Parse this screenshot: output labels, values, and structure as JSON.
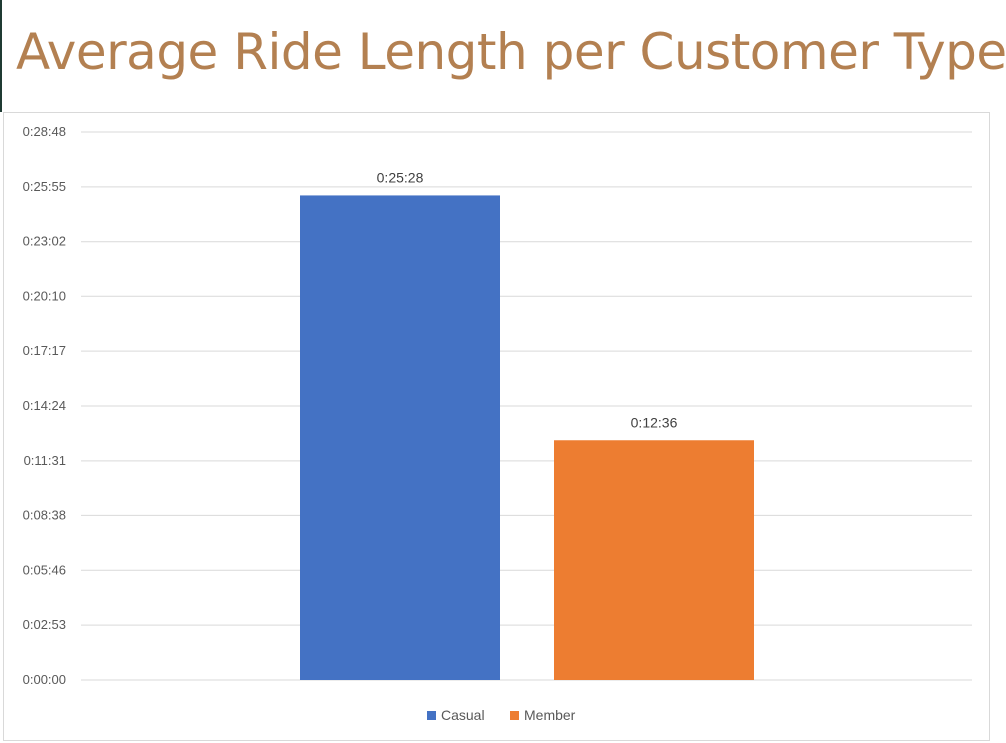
{
  "colors": {
    "title": "#b38051",
    "grid": "#d9d9d9",
    "casual": "#4472c4",
    "member": "#ed7d31"
  },
  "chart_data": {
    "type": "bar",
    "title": "Average Ride Length per Customer Type",
    "categories": [
      "Casual",
      "Member"
    ],
    "values": [
      1528,
      756
    ],
    "value_labels": [
      "0:25:28",
      "0:12:36"
    ],
    "series_colors": [
      "#4472c4",
      "#ed7d31"
    ],
    "y_ticks": [
      0,
      173,
      346,
      519,
      691,
      864,
      1037,
      1210,
      1382,
      1555,
      1728
    ],
    "y_tick_labels": [
      "0:00:00",
      "0:02:53",
      "0:05:46",
      "0:08:38",
      "0:11:31",
      "0:14:24",
      "0:17:17",
      "0:20:10",
      "0:23:02",
      "0:25:55",
      "0:28:48"
    ],
    "ylim": [
      0,
      1728
    ],
    "grid": true,
    "legend": {
      "placement": "bottom",
      "entries": [
        "Casual",
        "Member"
      ]
    },
    "xlabel": "",
    "ylabel": ""
  }
}
